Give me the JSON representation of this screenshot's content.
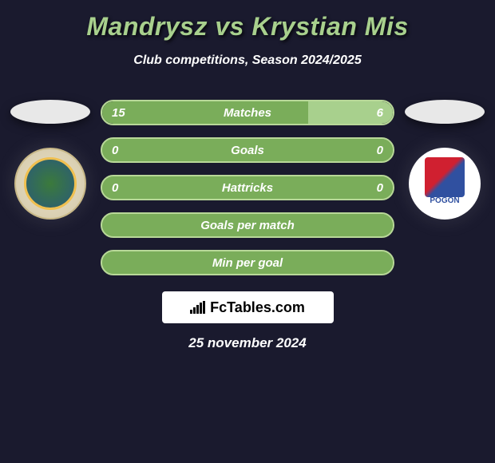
{
  "title": "Mandrysz vs Krystian Mis",
  "subtitle": "Club competitions, Season 2024/2025",
  "date": "25 november 2024",
  "watermark": "FcTables.com",
  "colors": {
    "background": "#1a1a2e",
    "title": "#a8d08d",
    "bar_border": "#b8d898",
    "bar_fill_dark": "#7aad5a",
    "bar_fill_light": "#a8d08d",
    "text": "#ffffff"
  },
  "stats": [
    {
      "label": "Matches",
      "left_value": "15",
      "right_value": "6",
      "left_pct": 71,
      "right_pct": 29,
      "has_values": true
    },
    {
      "label": "Goals",
      "left_value": "0",
      "right_value": "0",
      "left_pct": 100,
      "right_pct": 0,
      "has_values": true
    },
    {
      "label": "Hattricks",
      "left_value": "0",
      "right_value": "0",
      "left_pct": 100,
      "right_pct": 0,
      "has_values": true
    },
    {
      "label": "Goals per match",
      "left_value": "",
      "right_value": "",
      "left_pct": 100,
      "right_pct": 0,
      "has_values": false
    },
    {
      "label": "Min per goal",
      "left_value": "",
      "right_value": "",
      "left_pct": 100,
      "right_pct": 0,
      "has_values": false
    }
  ],
  "players": {
    "left": {
      "logo": "MPKS",
      "logo_bg": "#e8dfc8"
    },
    "right": {
      "logo": "POGON",
      "logo_bg": "#ffffff"
    }
  }
}
